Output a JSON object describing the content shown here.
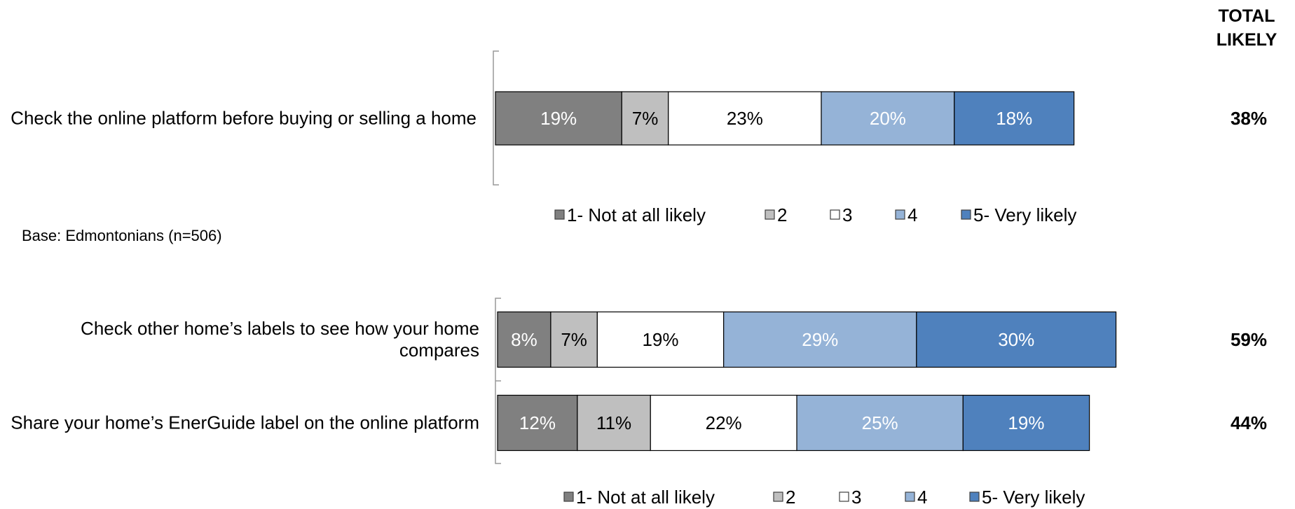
{
  "total_likely_header": "TOTAL LIKELY",
  "chart_data": [
    {
      "type": "stacked-barh",
      "categories": [
        "Check the online platform before buying or selling a home"
      ],
      "xlim": [
        0,
        100
      ],
      "series": [
        {
          "name": "1- Not at all likely",
          "color": "#808080",
          "label_color": "#ffffff",
          "values": [
            19
          ],
          "value_labels": [
            "19%"
          ]
        },
        {
          "name": "2",
          "color": "#bfbfbf",
          "label_color": "#000000",
          "values": [
            7
          ],
          "value_labels": [
            "7%"
          ]
        },
        {
          "name": "3",
          "color": "#ffffff",
          "label_color": "#000000",
          "values": [
            23
          ],
          "value_labels": [
            "23%"
          ]
        },
        {
          "name": "4",
          "color": "#95b3d7",
          "label_color": "#ffffff",
          "values": [
            20
          ],
          "value_labels": [
            "20%"
          ]
        },
        {
          "name": "5- Very likely",
          "color": "#4f81bd",
          "label_color": "#ffffff",
          "values": [
            18
          ],
          "value_labels": [
            "18%"
          ]
        }
      ],
      "total_likely": {
        "values": [
          38
        ],
        "value_labels": [
          "38%"
        ]
      },
      "note": "Base: Edmontonians (n=506)"
    },
    {
      "type": "stacked-barh",
      "categories": [
        "Check other home’s labels to see how your home compares",
        "Share your home’s EnerGuide label on the online platform"
      ],
      "xlim": [
        0,
        100
      ],
      "series": [
        {
          "name": "1- Not at all likely",
          "color": "#808080",
          "label_color": "#ffffff",
          "values": [
            8,
            12
          ],
          "value_labels": [
            "8%",
            "12%"
          ]
        },
        {
          "name": "2",
          "color": "#bfbfbf",
          "label_color": "#000000",
          "values": [
            7,
            11
          ],
          "value_labels": [
            "7%",
            "11%"
          ]
        },
        {
          "name": "3",
          "color": "#ffffff",
          "label_color": "#000000",
          "values": [
            19,
            22
          ],
          "value_labels": [
            "19%",
            "22%"
          ]
        },
        {
          "name": "4",
          "color": "#95b3d7",
          "label_color": "#ffffff",
          "values": [
            29,
            25
          ],
          "value_labels": [
            "29%",
            "25%"
          ]
        },
        {
          "name": "5- Very likely",
          "color": "#4f81bd",
          "label_color": "#ffffff",
          "values": [
            30,
            19
          ],
          "value_labels": [
            "30%",
            "19%"
          ]
        }
      ],
      "total_likely": {
        "values": [
          59,
          44
        ],
        "value_labels": [
          "59%",
          "44%"
        ]
      }
    }
  ]
}
